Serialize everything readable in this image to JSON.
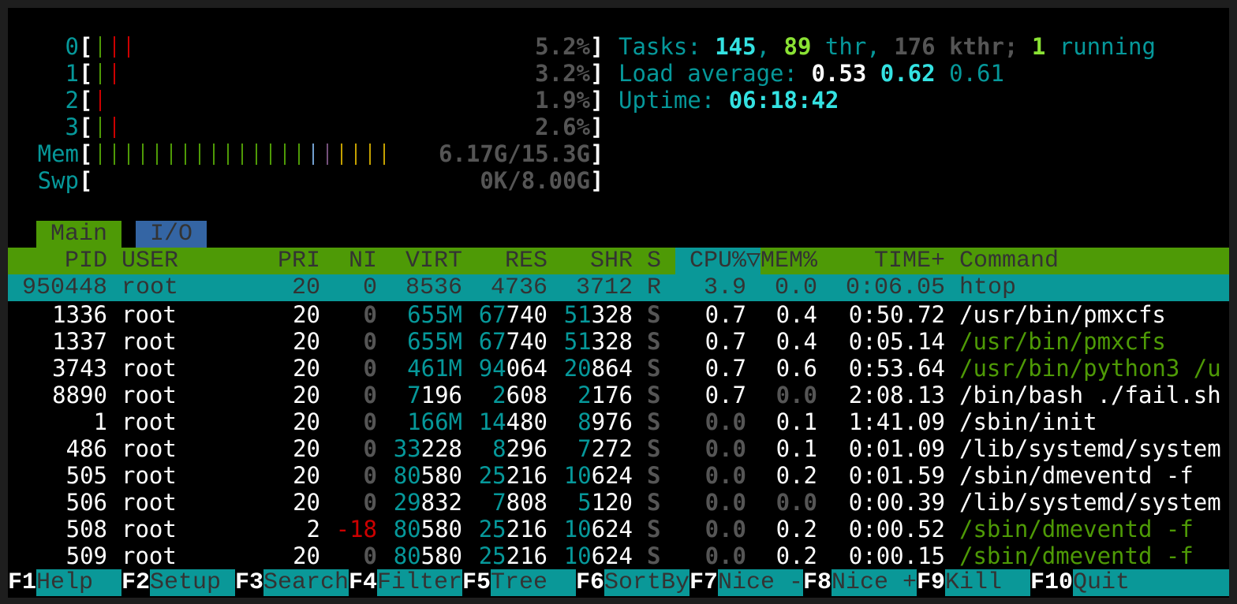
{
  "colors": {
    "teal": "#06989a",
    "green": "#4e9a06",
    "red": "#cc0000",
    "blue": "#729fcf",
    "purple": "#75507b",
    "yellow": "#c4a000",
    "tab_io": "#3465a4",
    "header_bg": "#4e9a06",
    "selected_bg": "#0a9898"
  },
  "meters": {
    "cpus": [
      {
        "label": "0",
        "bars": {
          "normal": 1,
          "kernel": 2
        },
        "value": "5.2%"
      },
      {
        "label": "1",
        "bars": {
          "normal": 1,
          "kernel": 1
        },
        "value": "3.2%"
      },
      {
        "label": "2",
        "bars": {
          "normal": 0,
          "kernel": 1
        },
        "value": "1.9%"
      },
      {
        "label": "3",
        "bars": {
          "normal": 1,
          "kernel": 1
        },
        "value": "2.6%"
      }
    ],
    "mem": {
      "label": "Mem",
      "bars": {
        "used": 15,
        "buffers": 1,
        "shared": 1,
        "cache": 4
      },
      "value": "6.17G/15.3G"
    },
    "swap": {
      "label": "Swp",
      "bars": {},
      "value": "0K/8.00G"
    }
  },
  "info": {
    "tasks_label": "Tasks: ",
    "tasks": "145",
    "sep1": ", ",
    "threads": "89",
    "thr_label": " thr, ",
    "kthreads": "176",
    "kthr_label": " kthr; ",
    "running": "1",
    "running_label": " running",
    "load_label": "Load average: ",
    "load1": "0.53",
    "load5": "0.62",
    "load15": "0.61",
    "uptime_label": "Uptime: ",
    "uptime": "06:18:42"
  },
  "tabs": [
    {
      "label": "Main",
      "active": true
    },
    {
      "label": "I/O",
      "active": false
    }
  ],
  "header": {
    "pid": "PID",
    "user": "USER",
    "pri": "PRI",
    "ni": "NI",
    "virt": "VIRT",
    "res": "RES",
    "shr": "SHR",
    "s": "S",
    "cpu": "CPU%",
    "sort_arrow": "▽",
    "mem": "MEM%",
    "time": "TIME+",
    "command": "Command"
  },
  "processes": [
    {
      "pid": "950448",
      "user": "root",
      "pri": "20",
      "ni": "0",
      "virt": "8536",
      "res": "4736",
      "shr": "3712",
      "s": "R",
      "cpu": "3.9",
      "mem": "0.0",
      "time": "0:06.05",
      "command": "htop",
      "selected": true
    },
    {
      "pid": "1336",
      "user": "root",
      "pri": "20",
      "ni": "0",
      "virt": "655M",
      "res": "67740",
      "shr": "51328",
      "s": "S",
      "cpu": "0.7",
      "mem": "0.4",
      "time": "0:50.72",
      "command": "/usr/bin/pmxcfs"
    },
    {
      "pid": "1337",
      "user": "root",
      "pri": "20",
      "ni": "0",
      "virt": "655M",
      "res": "67740",
      "shr": "51328",
      "s": "S",
      "cpu": "0.7",
      "mem": "0.4",
      "time": "0:05.14",
      "command": "/usr/bin/pmxcfs",
      "thread": true
    },
    {
      "pid": "3743",
      "user": "root",
      "pri": "20",
      "ni": "0",
      "virt": "461M",
      "res": "94064",
      "shr": "20864",
      "s": "S",
      "cpu": "0.7",
      "mem": "0.6",
      "time": "0:53.64",
      "command": "/usr/bin/python3 /u",
      "thread": true
    },
    {
      "pid": "8890",
      "user": "root",
      "pri": "20",
      "ni": "0",
      "virt": "7196",
      "res": "2608",
      "shr": "2176",
      "s": "S",
      "cpu": "0.7",
      "mem": "0.0",
      "time": "2:08.13",
      "command": "/bin/bash ./fail.sh"
    },
    {
      "pid": "1",
      "user": "root",
      "pri": "20",
      "ni": "0",
      "virt": "166M",
      "res": "14480",
      "shr": "8976",
      "s": "S",
      "cpu": "0.0",
      "mem": "0.1",
      "time": "1:41.09",
      "command": "/sbin/init"
    },
    {
      "pid": "486",
      "user": "root",
      "pri": "20",
      "ni": "0",
      "virt": "33228",
      "res": "8296",
      "shr": "7272",
      "s": "S",
      "cpu": "0.0",
      "mem": "0.1",
      "time": "0:01.09",
      "command": "/lib/systemd/system"
    },
    {
      "pid": "505",
      "user": "root",
      "pri": "20",
      "ni": "0",
      "virt": "80580",
      "res": "25216",
      "shr": "10624",
      "s": "S",
      "cpu": "0.0",
      "mem": "0.2",
      "time": "0:01.59",
      "command": "/sbin/dmeventd -f"
    },
    {
      "pid": "506",
      "user": "root",
      "pri": "20",
      "ni": "0",
      "virt": "29832",
      "res": "7808",
      "shr": "5120",
      "s": "S",
      "cpu": "0.0",
      "mem": "0.0",
      "time": "0:00.39",
      "command": "/lib/systemd/system"
    },
    {
      "pid": "508",
      "user": "root",
      "pri": "2",
      "ni": "-18",
      "virt": "80580",
      "res": "25216",
      "shr": "10624",
      "s": "S",
      "cpu": "0.0",
      "mem": "0.2",
      "time": "0:00.52",
      "command": "/sbin/dmeventd -f",
      "thread": true
    },
    {
      "pid": "509",
      "user": "root",
      "pri": "20",
      "ni": "0",
      "virt": "80580",
      "res": "25216",
      "shr": "10624",
      "s": "S",
      "cpu": "0.0",
      "mem": "0.2",
      "time": "0:00.15",
      "command": "/sbin/dmeventd -f",
      "thread": true
    }
  ],
  "footer": [
    {
      "key": "F1",
      "label": "Help"
    },
    {
      "key": "F2",
      "label": "Setup"
    },
    {
      "key": "F3",
      "label": "Search"
    },
    {
      "key": "F4",
      "label": "Filter"
    },
    {
      "key": "F5",
      "label": "Tree"
    },
    {
      "key": "F6",
      "label": "SortBy"
    },
    {
      "key": "F7",
      "label": "Nice -"
    },
    {
      "key": "F8",
      "label": "Nice +"
    },
    {
      "key": "F9",
      "label": "Kill"
    },
    {
      "key": "F10",
      "label": "Quit"
    }
  ]
}
